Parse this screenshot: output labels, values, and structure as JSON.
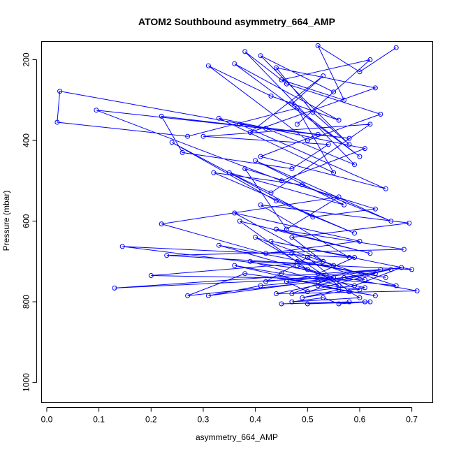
{
  "chart_data": {
    "type": "line",
    "title": "ATOM2 Southbound asymmetry_664_AMP",
    "xlabel": "asymmetry_664_AMP",
    "ylabel": "Pressure (mbar)",
    "xlim": [
      -0.01,
      0.74
    ],
    "ylim": [
      1050,
      155
    ],
    "y_inverted": true,
    "grid": false,
    "legend": "none",
    "x_ticks": [
      0.0,
      0.1,
      0.2,
      0.3,
      0.4,
      0.5,
      0.6,
      0.7
    ],
    "x_tick_labels": [
      "0.0",
      "0.1",
      "0.2",
      "0.3",
      "0.4",
      "0.5",
      "0.6",
      "0.7"
    ],
    "y_ticks": [
      200,
      400,
      600,
      800,
      1000
    ],
    "y_tick_labels": [
      "200",
      "400",
      "600",
      "800",
      "1000"
    ],
    "series": [
      {
        "color": "#0000ff",
        "marker": "open-circle",
        "x": [
          0.67,
          0.6,
          0.52,
          0.57,
          0.45,
          0.62,
          0.48,
          0.55,
          0.41,
          0.58,
          0.51,
          0.44,
          0.63,
          0.39,
          0.53,
          0.47,
          0.6,
          0.36,
          0.56,
          0.43,
          0.31,
          0.5,
          0.64,
          0.46,
          0.38,
          0.59,
          0.42,
          0.025,
          0.02,
          0.27,
          0.48,
          0.55,
          0.33,
          0.61,
          0.45,
          0.095,
          0.52,
          0.41,
          0.65,
          0.37,
          0.58,
          0.22,
          0.26,
          0.47,
          0.54,
          0.3,
          0.62,
          0.43,
          0.35,
          0.57,
          0.4,
          0.66,
          0.49,
          0.32,
          0.59,
          0.44,
          0.24,
          0.51,
          0.63,
          0.38,
          0.46,
          0.56,
          0.22,
          0.42,
          0.6,
          0.36,
          0.53,
          0.47,
          0.695,
          0.41,
          0.58,
          0.145,
          0.5,
          0.37,
          0.62,
          0.44,
          0.685,
          0.23,
          0.55,
          0.4,
          0.48,
          0.65,
          0.33,
          0.52,
          0.59,
          0.43,
          0.7,
          0.39,
          0.56,
          0.47,
          0.61,
          0.2,
          0.53,
          0.67,
          0.45,
          0.36,
          0.58,
          0.5,
          0.42,
          0.64,
          0.13,
          0.55,
          0.48,
          0.6,
          0.38,
          0.27,
          0.52,
          0.66,
          0.44,
          0.71,
          0.57,
          0.41,
          0.31,
          0.63,
          0.5,
          0.46,
          0.68,
          0.59,
          0.47,
          0.54,
          0.61,
          0.49,
          0.56,
          0.63,
          0.52,
          0.58,
          0.6,
          0.47,
          0.53,
          0.56,
          0.62,
          0.5,
          0.58,
          0.45,
          0.61
        ],
        "y": [
          170,
          230,
          165,
          300,
          250,
          200,
          360,
          280,
          190,
          410,
          330,
          220,
          270,
          380,
          240,
          310,
          440,
          210,
          350,
          290,
          215,
          400,
          335,
          260,
          180,
          460,
          370,
          278,
          355,
          390,
          320,
          480,
          345,
          420,
          500,
          325,
          385,
          440,
          520,
          360,
          395,
          340,
          430,
          470,
          410,
          390,
          360,
          530,
          480,
          560,
          450,
          600,
          510,
          480,
          630,
          550,
          405,
          590,
          570,
          470,
          620,
          540,
          607,
          680,
          650,
          580,
          700,
          640,
          605,
          560,
          690,
          663,
          720,
          600,
          680,
          620,
          670,
          685,
          710,
          640,
          700,
          740,
          660,
          730,
          690,
          650,
          720,
          700,
          760,
          680,
          745,
          735,
          700,
          760,
          730,
          710,
          775,
          690,
          750,
          720,
          766,
          740,
          710,
          770,
          730,
          785,
          750,
          720,
          780,
          773,
          740,
          760,
          785,
          730,
          775,
          750,
          715,
          760,
          780,
          745,
          765,
          790,
          770,
          785,
          760,
          775,
          790,
          800,
          790,
          805,
          800,
          805,
          800,
          805,
          800
        ]
      }
    ]
  }
}
